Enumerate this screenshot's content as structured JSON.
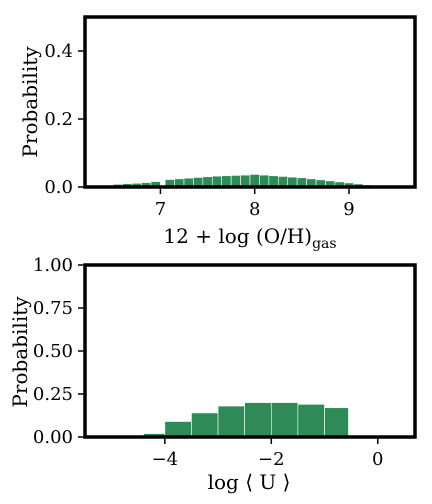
{
  "chart_data": [
    {
      "type": "bar",
      "ylabel": "Probability",
      "xlabel_main": "12 + log (O/H)",
      "xlabel_sub": "gas",
      "xlim": [
        6.2,
        9.7
      ],
      "ylim": [
        0,
        0.5
      ],
      "xticks": [
        7,
        8,
        9
      ],
      "xtick_labels": [
        "7",
        "8",
        "9"
      ],
      "yticks": [
        0.0,
        0.2,
        0.4
      ],
      "ytick_labels": [
        "0.0",
        "0.2",
        "0.4"
      ],
      "bar_color": "#2e8b57",
      "bins": [
        {
          "x0": 6.5,
          "x1": 6.6,
          "value": 0.008
        },
        {
          "x0": 6.6,
          "x1": 6.7,
          "value": 0.01
        },
        {
          "x0": 6.7,
          "x1": 6.8,
          "value": 0.011
        },
        {
          "x0": 6.8,
          "x1": 6.9,
          "value": 0.013
        },
        {
          "x0": 6.9,
          "x1": 7.0,
          "value": 0.016
        },
        {
          "x0": 7.05,
          "x1": 7.15,
          "value": 0.022
        },
        {
          "x0": 7.15,
          "x1": 7.25,
          "value": 0.024
        },
        {
          "x0": 7.25,
          "x1": 7.35,
          "value": 0.026
        },
        {
          "x0": 7.35,
          "x1": 7.45,
          "value": 0.028
        },
        {
          "x0": 7.45,
          "x1": 7.55,
          "value": 0.03
        },
        {
          "x0": 7.55,
          "x1": 7.65,
          "value": 0.032
        },
        {
          "x0": 7.65,
          "x1": 7.75,
          "value": 0.033
        },
        {
          "x0": 7.75,
          "x1": 7.85,
          "value": 0.034
        },
        {
          "x0": 7.85,
          "x1": 7.95,
          "value": 0.035
        },
        {
          "x0": 7.95,
          "x1": 8.05,
          "value": 0.037
        },
        {
          "x0": 8.05,
          "x1": 8.15,
          "value": 0.035
        },
        {
          "x0": 8.15,
          "x1": 8.25,
          "value": 0.033
        },
        {
          "x0": 8.25,
          "x1": 8.35,
          "value": 0.031
        },
        {
          "x0": 8.35,
          "x1": 8.45,
          "value": 0.029
        },
        {
          "x0": 8.45,
          "x1": 8.55,
          "value": 0.027
        },
        {
          "x0": 8.55,
          "x1": 8.65,
          "value": 0.024
        },
        {
          "x0": 8.65,
          "x1": 8.75,
          "value": 0.021
        },
        {
          "x0": 8.75,
          "x1": 8.85,
          "value": 0.018
        },
        {
          "x0": 8.85,
          "x1": 8.95,
          "value": 0.015
        },
        {
          "x0": 8.95,
          "x1": 9.05,
          "value": 0.012
        },
        {
          "x0": 9.05,
          "x1": 9.15,
          "value": 0.009
        },
        {
          "x0": 9.15,
          "x1": 9.25,
          "value": 0.006
        },
        {
          "x0": 9.25,
          "x1": 9.35,
          "value": 0.003
        }
      ]
    },
    {
      "type": "bar",
      "ylabel": "Probability",
      "xlabel": "log ⟨ U ⟩",
      "xlim": [
        -5.5,
        0.7
      ],
      "ylim": [
        0,
        1.0
      ],
      "xticks": [
        -4,
        -2,
        0
      ],
      "xtick_labels": [
        "−4",
        "−2",
        "0"
      ],
      "yticks": [
        0.0,
        0.25,
        0.5,
        0.75,
        1.0
      ],
      "ytick_labels": [
        "0.00",
        "0.25",
        "0.50",
        "0.75",
        "1.00"
      ],
      "bar_color": "#2e8b57",
      "bins": [
        {
          "x0": -4.4,
          "x1": -4.0,
          "value": 0.02
        },
        {
          "x0": -4.0,
          "x1": -3.5,
          "value": 0.09
        },
        {
          "x0": -3.5,
          "x1": -3.0,
          "value": 0.14
        },
        {
          "x0": -3.0,
          "x1": -2.5,
          "value": 0.18
        },
        {
          "x0": -2.5,
          "x1": -2.0,
          "value": 0.2
        },
        {
          "x0": -2.0,
          "x1": -1.5,
          "value": 0.2
        },
        {
          "x0": -1.5,
          "x1": -1.0,
          "value": 0.19
        },
        {
          "x0": -1.0,
          "x1": -0.55,
          "value": 0.17
        }
      ]
    }
  ]
}
